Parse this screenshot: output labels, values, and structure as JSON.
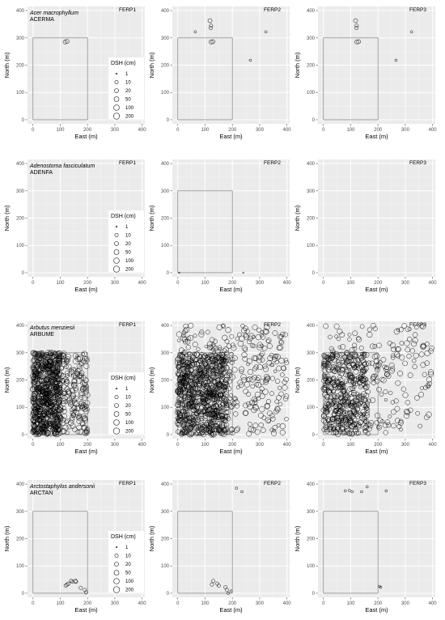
{
  "legend": {
    "title": "DSH (cm)",
    "sizes": [
      1,
      10,
      20,
      50,
      100,
      200
    ],
    "labels": [
      "1",
      "10",
      "20",
      "50",
      "100",
      "200"
    ]
  },
  "panel_titles": [
    "FERP1",
    "FERP2",
    "FERP3"
  ],
  "axis_labels": {
    "x": "East (m)",
    "y": "North (m)"
  },
  "rows": [
    {
      "species_name": "Acer macrophyllum",
      "code": "ACERMA"
    },
    {
      "species_name": "Adenostoma fasciculatum",
      "code": "ADENFA"
    },
    {
      "species_name": "Arbutus menziesii",
      "code": "ARBUME"
    },
    {
      "species_name": "Arctostaphylos andersonii",
      "code": "ARCTAN"
    }
  ],
  "chart_data": {
    "type": "scatter",
    "xlim": [
      -20,
      410
    ],
    "ylim": [
      -15,
      415
    ],
    "x_ticks": [
      0,
      100,
      200,
      300,
      400
    ],
    "y_ticks": [
      0,
      100,
      200,
      300,
      400
    ],
    "grid": true,
    "legend_position": "inside-right of FERP1 panel",
    "plot_boundary_FERP1_FERP2_FERP3": {
      "x": [
        0,
        200
      ],
      "y": [
        0,
        300
      ]
    },
    "panels": [
      {
        "row": 0,
        "plot": "FERP1",
        "show_boundary": true,
        "points": [
          [
            118,
            285,
            20
          ],
          [
            125,
            287,
            20
          ]
        ]
      },
      {
        "row": 0,
        "plot": "FERP2",
        "show_boundary": true,
        "points": [
          [
            64,
            322,
            3
          ],
          [
            118,
            363,
            20
          ],
          [
            122,
            345,
            10
          ],
          [
            121,
            336,
            10
          ],
          [
            122,
            285,
            20
          ],
          [
            129,
            286,
            20
          ],
          [
            266,
            218,
            3
          ],
          [
            323,
            322,
            3
          ]
        ]
      },
      {
        "row": 0,
        "plot": "FERP3",
        "show_boundary": true,
        "points": [
          [
            118,
            363,
            20
          ],
          [
            122,
            345,
            10
          ],
          [
            121,
            336,
            10
          ],
          [
            122,
            285,
            20
          ],
          [
            129,
            286,
            20
          ],
          [
            266,
            218,
            3
          ],
          [
            323,
            322,
            3
          ]
        ]
      },
      {
        "row": 1,
        "plot": "FERP1",
        "show_boundary": false,
        "points": []
      },
      {
        "row": 1,
        "plot": "FERP2",
        "show_boundary": true,
        "points": [
          [
            5,
            0,
            1
          ],
          [
            240,
            0,
            1
          ]
        ]
      },
      {
        "row": 1,
        "plot": "FERP3",
        "show_boundary": false,
        "points": []
      },
      {
        "row": 2,
        "plot": "FERP1",
        "show_boundary": true,
        "point_cloud": {
          "n": 900,
          "seed": 11,
          "x": [
            0,
            200
          ],
          "y": [
            0,
            300
          ],
          "dense_x_max": 100,
          "dsh_range": [
            5,
            100
          ]
        }
      },
      {
        "row": 2,
        "plot": "FERP2",
        "show_boundary": true,
        "point_cloud": {
          "n": 1100,
          "seed": 23,
          "x": [
            0,
            400
          ],
          "y": [
            0,
            400
          ],
          "dense_x_max": 180,
          "dsh_range": [
            5,
            100
          ]
        }
      },
      {
        "row": 2,
        "plot": "FERP3",
        "show_boundary": true,
        "point_cloud": {
          "n": 650,
          "seed": 37,
          "x": [
            0,
            400
          ],
          "y": [
            0,
            400
          ],
          "dense_x_max": 160,
          "dsh_range": [
            5,
            100
          ]
        }
      },
      {
        "row": 3,
        "plot": "FERP1",
        "show_boundary": true,
        "points": [
          [
            120,
            28,
            10
          ],
          [
            125,
            32,
            10
          ],
          [
            130,
            35,
            10
          ],
          [
            140,
            45,
            10
          ],
          [
            145,
            42,
            10
          ],
          [
            155,
            45,
            20
          ],
          [
            158,
            42,
            10
          ],
          [
            175,
            20,
            10
          ],
          [
            190,
            12,
            10
          ],
          [
            195,
            3,
            10
          ]
        ]
      },
      {
        "row": 3,
        "plot": "FERP2",
        "show_boundary": true,
        "points": [
          [
            125,
            32,
            10
          ],
          [
            130,
            45,
            10
          ],
          [
            145,
            35,
            10
          ],
          [
            150,
            28,
            10
          ],
          [
            175,
            22,
            10
          ],
          [
            180,
            12,
            10
          ],
          [
            185,
            0,
            3
          ],
          [
            195,
            8,
            3
          ],
          [
            215,
            385,
            3
          ],
          [
            235,
            372,
            3
          ]
        ]
      },
      {
        "row": 3,
        "plot": "FERP3",
        "show_boundary": true,
        "points": [
          [
            80,
            375,
            3
          ],
          [
            95,
            377,
            3
          ],
          [
            105,
            372,
            3
          ],
          [
            140,
            372,
            3
          ],
          [
            160,
            390,
            3
          ],
          [
            230,
            375,
            3
          ],
          [
            205,
            25,
            3
          ],
          [
            210,
            22,
            3
          ]
        ]
      }
    ]
  }
}
